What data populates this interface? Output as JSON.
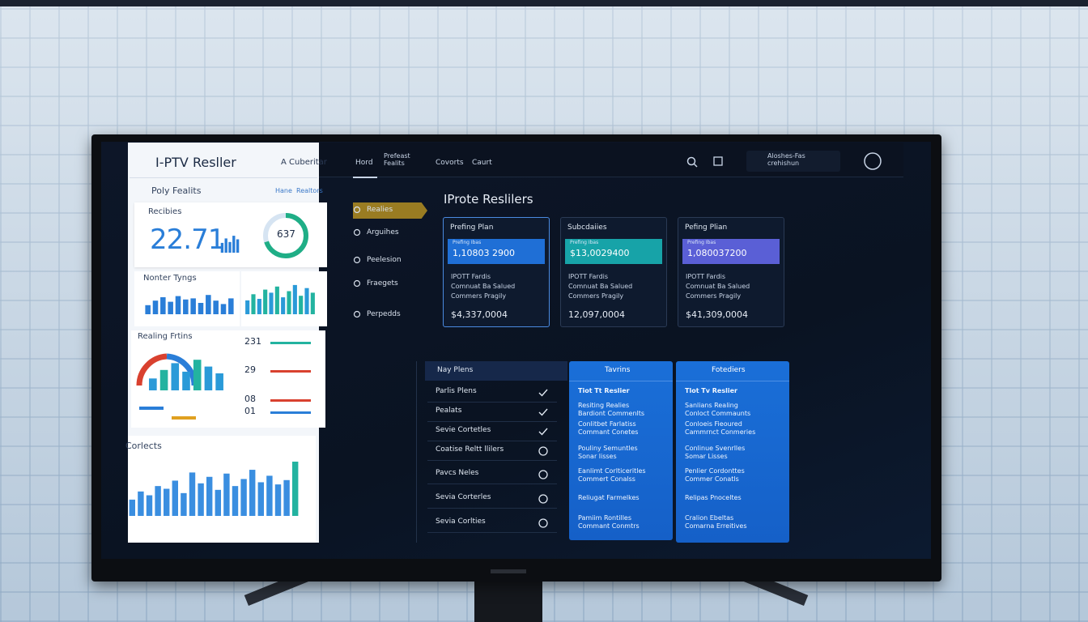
{
  "left_panel": {
    "title": "I-PTV Resller",
    "account": "A Cuberitar",
    "section": "Poly Fealits",
    "link_1": "Hane",
    "link_2": "Realtors",
    "kpi": {
      "label": "Recibies",
      "value": "22.71",
      "gauge": "637",
      "bars": [
        55,
        80,
        60,
        95,
        75
      ]
    },
    "notes": {
      "label": "Nonter Tyngs",
      "bars_left": [
        40,
        60,
        75,
        55,
        80,
        65,
        70,
        50,
        85,
        60,
        45,
        70
      ],
      "bars_right": [
        45,
        65,
        50,
        80,
        70,
        90,
        55,
        75,
        95,
        60,
        85,
        70
      ]
    },
    "rating": {
      "label": "Realing Frtins",
      "bars": [
        35,
        60,
        80,
        55,
        90,
        70,
        50
      ],
      "stats": [
        "231",
        "29",
        "08",
        "01"
      ]
    },
    "contacts": {
      "label": "Corlects",
      "bars": [
        30,
        45,
        38,
        55,
        50,
        65,
        42,
        80,
        60,
        72,
        48,
        78,
        55,
        68,
        85,
        62,
        74,
        58,
        66,
        100
      ]
    }
  },
  "top_nav": {
    "items": [
      "Hord",
      "Prefeast Fealits",
      "Covorts",
      "Caurt"
    ],
    "account": "Aloshes-Fas crehishun"
  },
  "sidebar": [
    "Realies",
    "Arguihes",
    "Peelesion",
    "Fraegets",
    "Perpedds"
  ],
  "heading": "IProte Reslilers",
  "cards": [
    {
      "title": "Prefing Plan",
      "tag": "Prefing Ibas",
      "price": "1,10803 2900",
      "color": "#1f6fd6",
      "lines": [
        "IPOTT Fardis",
        "Comnuat Ba Salued",
        "Commers Pragily"
      ],
      "total": "$4,337,0004"
    },
    {
      "title": "Subcdaiies",
      "tag": "Prefing Ibas",
      "price": "$13,0029400",
      "color": "#17a3a8",
      "lines": [
        "IPOTT Fardis",
        "Comnuat Ba Salued",
        "Commers Pragily"
      ],
      "total": "12,097,0004"
    },
    {
      "title": "Pefing Plian",
      "tag": "Prefing Ibas",
      "price": "1,080037200",
      "color": "#5a5fd6",
      "lines": [
        "IPOTT Fardis",
        "Comnuat Ba Salued",
        "Commers Pragily"
      ],
      "total": "$41,309,0004"
    }
  ],
  "plans_table": {
    "header": "Nay Plens",
    "rows": [
      "Parlis Plens",
      "Pealats",
      "Sevie Cortetles",
      "Coatise Reltt llilers",
      "Pavcs Neles",
      "Sevia Corterles",
      "Sevia Corlties"
    ]
  },
  "columns": [
    {
      "header": "Tavrins",
      "items": [
        "Tiot Tt Reslier",
        "Resiting Realies\nBardiont Commenlts",
        "Conlitbet Farlatiss\nCommant Conetes",
        "Pouliny Semuntles\nSonar lisses",
        "Eanlimt Corlticeritles\nCommert Conalss",
        "Reliugat Farmelkes",
        "Pamiim Rontilles\nCommant Conmtrs"
      ]
    },
    {
      "header": "Fotediers",
      "items": [
        "Tlot Tv Reslier",
        "Sanlians Realing\nConloct Commaunts",
        "Conloeis Fieoured\nCammrnct Conmeries",
        "Conlinue Svenrlles\nSomar Lisses",
        "Penlier Cordonttes\nCommer Conatls",
        "Relipas Pnoceltes",
        "Cralion Ebeltas\nComarna Erreitives"
      ]
    }
  ]
}
